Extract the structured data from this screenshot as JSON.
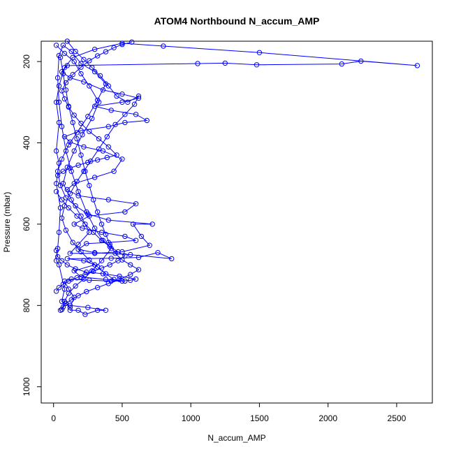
{
  "chart_data": {
    "type": "line",
    "title": "ATOM4 Northbound N_accum_AMP",
    "xlabel": "N_accum_AMP",
    "ylabel": "Pressure (mbar)",
    "xlim": [
      -90,
      2760
    ],
    "ylim": [
      1040,
      150
    ],
    "y_reversed": true,
    "x_ticks": [
      0,
      500,
      1000,
      1500,
      2000,
      2500
    ],
    "y_ticks": [
      200,
      400,
      600,
      800,
      1000
    ],
    "marker": "open-circle",
    "grid": false,
    "legend": "none",
    "color": "#0000ff",
    "series": [
      {
        "points": [
          [
            60,
            810
          ],
          [
            90,
            795
          ],
          [
            120,
            805
          ],
          [
            150,
            780
          ],
          [
            110,
            760
          ],
          [
            80,
            740
          ],
          [
            130,
            735
          ],
          [
            260,
            738
          ],
          [
            420,
            740
          ],
          [
            520,
            740
          ],
          [
            380,
            736
          ],
          [
            200,
            730
          ],
          [
            150,
            715
          ],
          [
            300,
            700
          ],
          [
            220,
            690
          ],
          [
            100,
            685
          ],
          [
            420,
            684
          ],
          [
            620,
            682
          ],
          [
            760,
            670
          ],
          [
            860,
            685
          ],
          [
            560,
            675
          ],
          [
            300,
            670
          ],
          [
            180,
            662
          ],
          [
            240,
            648
          ],
          [
            400,
            645
          ],
          [
            600,
            640
          ],
          [
            520,
            630
          ],
          [
            350,
            620
          ],
          [
            210,
            610
          ],
          [
            150,
            600
          ],
          [
            260,
            580
          ],
          [
            520,
            570
          ],
          [
            600,
            550
          ],
          [
            400,
            540
          ],
          [
            180,
            530
          ],
          [
            100,
            515
          ],
          [
            150,
            500
          ],
          [
            300,
            485
          ],
          [
            440,
            470
          ],
          [
            500,
            440
          ],
          [
            360,
            420
          ],
          [
            220,
            410
          ],
          [
            120,
            398
          ],
          [
            80,
            385
          ],
          [
            200,
            370
          ],
          [
            400,
            360
          ],
          [
            520,
            350
          ],
          [
            680,
            345
          ],
          [
            600,
            330
          ],
          [
            420,
            320
          ],
          [
            300,
            310
          ],
          [
            500,
            300
          ],
          [
            620,
            290
          ],
          [
            500,
            280
          ],
          [
            360,
            270
          ],
          [
            220,
            250
          ],
          [
            120,
            240
          ],
          [
            60,
            225
          ],
          [
            100,
            210
          ],
          [
            1050,
            205
          ],
          [
            1250,
            204
          ],
          [
            1480,
            208
          ],
          [
            2100,
            206
          ],
          [
            2240,
            199
          ],
          [
            2650,
            210
          ],
          [
            1500,
            178
          ],
          [
            800,
            162
          ],
          [
            500,
            155
          ],
          [
            300,
            170
          ],
          [
            140,
            190
          ],
          [
            80,
            215
          ],
          [
            40,
            260
          ],
          [
            20,
            300
          ],
          [
            40,
            350
          ],
          [
            20,
            420
          ],
          [
            40,
            450
          ],
          [
            20,
            500
          ],
          [
            50,
            560
          ],
          [
            40,
            620
          ],
          [
            30,
            660
          ],
          [
            20,
            690
          ],
          [
            40,
            700
          ],
          [
            80,
            760
          ],
          [
            60,
            790
          ],
          [
            120,
            800
          ],
          [
            250,
            805
          ],
          [
            380,
            812
          ],
          [
            320,
            812
          ],
          [
            230,
            822
          ],
          [
            180,
            812
          ],
          [
            120,
            812
          ]
        ]
      },
      {
        "points": [
          [
            20,
            160
          ],
          [
            80,
            180
          ],
          [
            150,
            200
          ],
          [
            200,
            230
          ],
          [
            260,
            260
          ],
          [
            330,
            300
          ],
          [
            280,
            340
          ],
          [
            210,
            380
          ],
          [
            150,
            420
          ],
          [
            100,
            460
          ],
          [
            70,
            500
          ],
          [
            130,
            540
          ],
          [
            200,
            580
          ],
          [
            260,
            620
          ],
          [
            180,
            650
          ],
          [
            120,
            672
          ],
          [
            300,
            672
          ],
          [
            500,
            668
          ],
          [
            700,
            652
          ],
          [
            640,
            630
          ],
          [
            580,
            600
          ],
          [
            720,
            600
          ],
          [
            400,
            590
          ],
          [
            250,
            575
          ],
          [
            160,
            555
          ],
          [
            90,
            535
          ],
          [
            50,
            505
          ],
          [
            30,
            470
          ],
          [
            60,
            440
          ],
          [
            110,
            405
          ],
          [
            170,
            375
          ],
          [
            250,
            335
          ],
          [
            320,
            295
          ],
          [
            380,
            255
          ],
          [
            300,
            225
          ],
          [
            200,
            205
          ],
          [
            130,
            175
          ],
          [
            70,
            160
          ],
          [
            40,
            185
          ],
          [
            30,
            240
          ],
          [
            40,
            300
          ],
          [
            60,
            360
          ],
          [
            90,
            420
          ],
          [
            130,
            470
          ],
          [
            180,
            520
          ],
          [
            240,
            570
          ],
          [
            300,
            610
          ],
          [
            360,
            640
          ],
          [
            420,
            660
          ],
          [
            350,
            690
          ],
          [
            280,
            715
          ],
          [
            220,
            735
          ],
          [
            160,
            752
          ],
          [
            110,
            770
          ],
          [
            80,
            790
          ],
          [
            60,
            810
          ]
        ]
      },
      {
        "points": [
          [
            100,
            150
          ],
          [
            160,
            175
          ],
          [
            220,
            195
          ],
          [
            280,
            215
          ],
          [
            340,
            235
          ],
          [
            400,
            260
          ],
          [
            460,
            285
          ],
          [
            540,
            300
          ],
          [
            620,
            285
          ],
          [
            590,
            305
          ],
          [
            520,
            330
          ],
          [
            450,
            355
          ],
          [
            390,
            385
          ],
          [
            330,
            415
          ],
          [
            270,
            445
          ],
          [
            220,
            470
          ],
          [
            170,
            495
          ],
          [
            120,
            525
          ],
          [
            80,
            555
          ],
          [
            60,
            585
          ],
          [
            90,
            615
          ],
          [
            140,
            645
          ],
          [
            200,
            668
          ],
          [
            260,
            688
          ],
          [
            320,
            705
          ],
          [
            380,
            722
          ],
          [
            440,
            736
          ],
          [
            500,
            740
          ],
          [
            560,
            738
          ],
          [
            600,
            735
          ],
          [
            480,
            728
          ],
          [
            360,
            722
          ],
          [
            240,
            718
          ],
          [
            160,
            710
          ],
          [
            100,
            700
          ],
          [
            60,
            690
          ],
          [
            30,
            680
          ],
          [
            20,
            665
          ]
        ]
      },
      {
        "points": [
          [
            50,
            190
          ],
          [
            70,
            230
          ],
          [
            90,
            270
          ],
          [
            110,
            310
          ],
          [
            140,
            350
          ],
          [
            170,
            390
          ],
          [
            200,
            430
          ],
          [
            230,
            470
          ],
          [
            260,
            505
          ],
          [
            290,
            540
          ],
          [
            320,
            570
          ],
          [
            350,
            600
          ],
          [
            380,
            625
          ],
          [
            410,
            650
          ],
          [
            450,
            672
          ],
          [
            500,
            688
          ],
          [
            560,
            700
          ],
          [
            620,
            712
          ],
          [
            560,
            724
          ],
          [
            480,
            736
          ],
          [
            400,
            746
          ],
          [
            320,
            756
          ],
          [
            240,
            766
          ],
          [
            180,
            776
          ],
          [
            130,
            786
          ],
          [
            90,
            795
          ],
          [
            70,
            804
          ],
          [
            50,
            812
          ]
        ]
      },
      {
        "points": [
          [
            30,
            480
          ],
          [
            70,
            470
          ],
          [
            120,
            462
          ],
          [
            180,
            455
          ],
          [
            250,
            448
          ],
          [
            320,
            442
          ],
          [
            390,
            436
          ],
          [
            460,
            430
          ],
          [
            400,
            410
          ],
          [
            330,
            390
          ],
          [
            260,
            372
          ],
          [
            200,
            352
          ],
          [
            150,
            332
          ],
          [
            110,
            312
          ],
          [
            80,
            292
          ],
          [
            60,
            272
          ],
          [
            90,
            252
          ],
          [
            140,
            232
          ],
          [
            200,
            214
          ],
          [
            260,
            198
          ],
          [
            320,
            186
          ],
          [
            380,
            176
          ],
          [
            440,
            166
          ],
          [
            500,
            158
          ],
          [
            570,
            152
          ]
        ]
      },
      {
        "points": [
          [
            20,
            520
          ],
          [
            60,
            540
          ],
          [
            110,
            560
          ],
          [
            170,
            580
          ],
          [
            230,
            600
          ],
          [
            290,
            620
          ],
          [
            350,
            640
          ],
          [
            410,
            655
          ],
          [
            470,
            668
          ],
          [
            520,
            678
          ],
          [
            470,
            690
          ],
          [
            410,
            700
          ],
          [
            350,
            708
          ],
          [
            290,
            716
          ],
          [
            230,
            724
          ],
          [
            170,
            732
          ],
          [
            110,
            740
          ],
          [
            70,
            748
          ],
          [
            40,
            756
          ],
          [
            20,
            765
          ]
        ]
      }
    ]
  }
}
